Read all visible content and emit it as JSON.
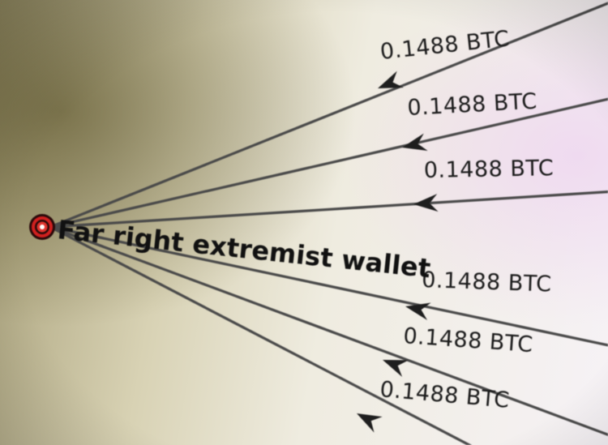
{
  "wallet": {
    "label": "Far right extremist wallet",
    "icon": "target-icon"
  },
  "transactions": [
    {
      "amount": "0.1488 BTC"
    },
    {
      "amount": "0.1488 BTC"
    },
    {
      "amount": "0.1488 BTC"
    },
    {
      "amount": "0.1488 BTC"
    },
    {
      "amount": "0.1488 BTC"
    },
    {
      "amount": "0.1488 BTC"
    }
  ],
  "colors": {
    "target_outer": "#d1201f",
    "target_ring": "#2a0a0a",
    "edge": "#4a4a4a",
    "arrow": "#1e1e1e"
  }
}
